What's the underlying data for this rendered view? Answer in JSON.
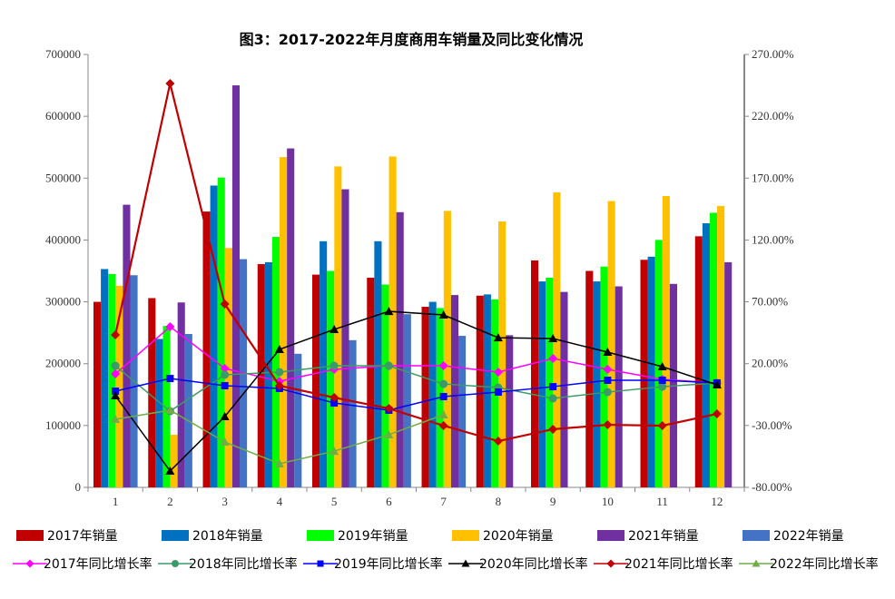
{
  "chart_data": {
    "type": "bar+line",
    "title": "图3：2017-2022年月度商用车销量及同比变化情况",
    "categories": [
      "1",
      "2",
      "3",
      "4",
      "5",
      "6",
      "7",
      "8",
      "9",
      "10",
      "11",
      "12"
    ],
    "y_left": {
      "range": [
        0,
        700000
      ],
      "ticks": [
        "0",
        "100000",
        "200000",
        "300000",
        "400000",
        "500000",
        "600000",
        "700000"
      ]
    },
    "y_right": {
      "range": [
        -80,
        270
      ],
      "ticks": [
        "-80.00%",
        "-30.00%",
        "20.00%",
        "70.00%",
        "120.00%",
        "170.00%",
        "220.00%",
        "270.00%"
      ]
    },
    "bar_series": [
      {
        "name": "2017年销量",
        "color": "#C00000",
        "values": [
          300000,
          306000,
          446000,
          361000,
          344000,
          339000,
          292000,
          310000,
          367000,
          350000,
          368000,
          406000
        ]
      },
      {
        "name": "2018年销量",
        "color": "#0070C0",
        "values": [
          353000,
          240000,
          488000,
          364000,
          398000,
          398000,
          300000,
          312000,
          333000,
          333000,
          373000,
          427000
        ]
      },
      {
        "name": "2019年销量",
        "color": "#00FF00",
        "values": [
          345000,
          261000,
          501000,
          405000,
          350000,
          328000,
          290000,
          304000,
          339000,
          357000,
          400000,
          444000
        ]
      },
      {
        "name": "2020年销量",
        "color": "#FFC000",
        "values": [
          326000,
          85000,
          387000,
          534000,
          519000,
          535000,
          447000,
          430000,
          477000,
          463000,
          471000,
          455000
        ]
      },
      {
        "name": "2021年销量",
        "color": "#7030A0",
        "values": [
          457000,
          299000,
          650000,
          548000,
          482000,
          445000,
          311000,
          246000,
          316000,
          325000,
          329000,
          364000
        ]
      },
      {
        "name": "2022年销量",
        "color": "#4472C4",
        "values": [
          343000,
          248000,
          369000,
          216000,
          238000,
          280000,
          245000,
          null,
          null,
          null,
          null,
          null
        ]
      }
    ],
    "line_series": [
      {
        "name": "2017年同比增长率",
        "color": "#FF00FF",
        "marker": "diamond",
        "values": [
          11.7,
          49.9,
          16.1,
          5.8,
          15.4,
          18.3,
          18.3,
          13.2,
          24.2,
          15.4,
          7.3,
          4.4
        ]
      },
      {
        "name": "2018年同比增长率",
        "color": "#3C9A6A",
        "marker": "circle",
        "values": [
          18.3,
          -18.4,
          11.0,
          13.2,
          18.3,
          18.3,
          3.6,
          0.7,
          -8.1,
          -3.0,
          1.4,
          4.4
        ]
      },
      {
        "name": "2019年同比增长率",
        "color": "#0000FF",
        "marker": "square",
        "values": [
          -2.2,
          8.0,
          2.2,
          0.0,
          -11.8,
          -17.6,
          -6.6,
          -3.0,
          1.4,
          6.6,
          6.6,
          4.4
        ]
      },
      {
        "name": "2020年同比增长率",
        "color": "#000000",
        "marker": "triangle",
        "values": [
          -5.9,
          -66.8,
          -22.8,
          31.5,
          47.7,
          62.3,
          59.4,
          41.0,
          40.3,
          29.3,
          17.6,
          2.9
        ]
      },
      {
        "name": "2021年同比增长率",
        "color": "#C00000",
        "marker": "diamond",
        "values": [
          43.3,
          246.5,
          68.2,
          2.2,
          -7.4,
          -16.2,
          -30.1,
          -42.6,
          -33.0,
          -29.4,
          -30.1,
          -20.6
        ]
      },
      {
        "name": "2022年同比增长率",
        "color": "#70AD47",
        "marker": "triangle",
        "values": [
          -25.0,
          -17.6,
          -43.3,
          -60.9,
          -50.7,
          -37.4,
          -21.3,
          null,
          null,
          null,
          null,
          null
        ]
      }
    ],
    "legend": "bottom",
    "grid": false
  }
}
